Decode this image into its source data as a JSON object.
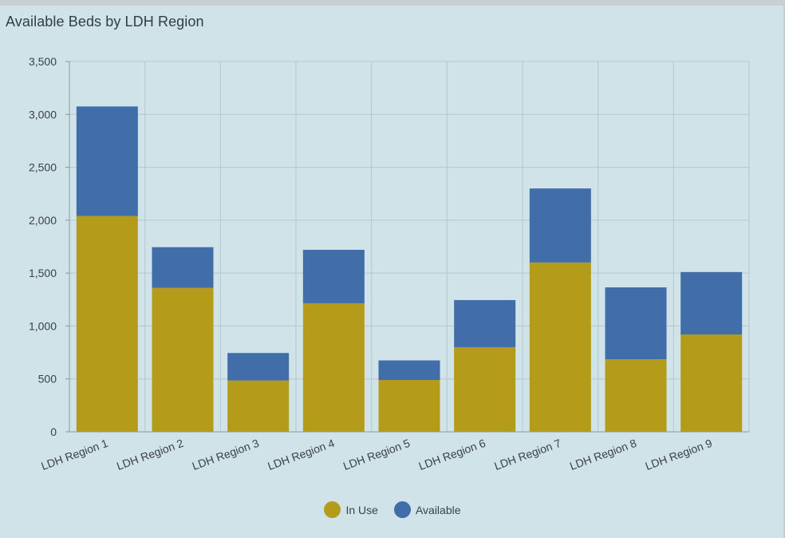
{
  "chart_data": {
    "type": "bar",
    "stacked": true,
    "title": "Available Beds by LDH Region",
    "xlabel": "",
    "ylabel": "",
    "ylim": [
      0,
      3500
    ],
    "yticks": [
      0,
      500,
      1000,
      1500,
      2000,
      2500,
      3000,
      3500
    ],
    "ytick_labels": [
      "0",
      "500",
      "1,000",
      "1,500",
      "2,000",
      "2,500",
      "3,000",
      "3,500"
    ],
    "grid": true,
    "legend_position": "bottom-center",
    "categories": [
      "LDH Region 1",
      "LDH Region 2",
      "LDH Region 3",
      "LDH Region 4",
      "LDH Region 5",
      "LDH Region 6",
      "LDH Region 7",
      "LDH Region 8",
      "LDH Region 9"
    ],
    "series": [
      {
        "name": "In Use",
        "color": "#b59b1a",
        "values": [
          2040,
          1360,
          485,
          1215,
          490,
          800,
          1600,
          685,
          920
        ]
      },
      {
        "name": "Available",
        "color": "#416da9",
        "values": [
          1035,
          385,
          260,
          505,
          185,
          445,
          700,
          680,
          590
        ]
      }
    ]
  }
}
